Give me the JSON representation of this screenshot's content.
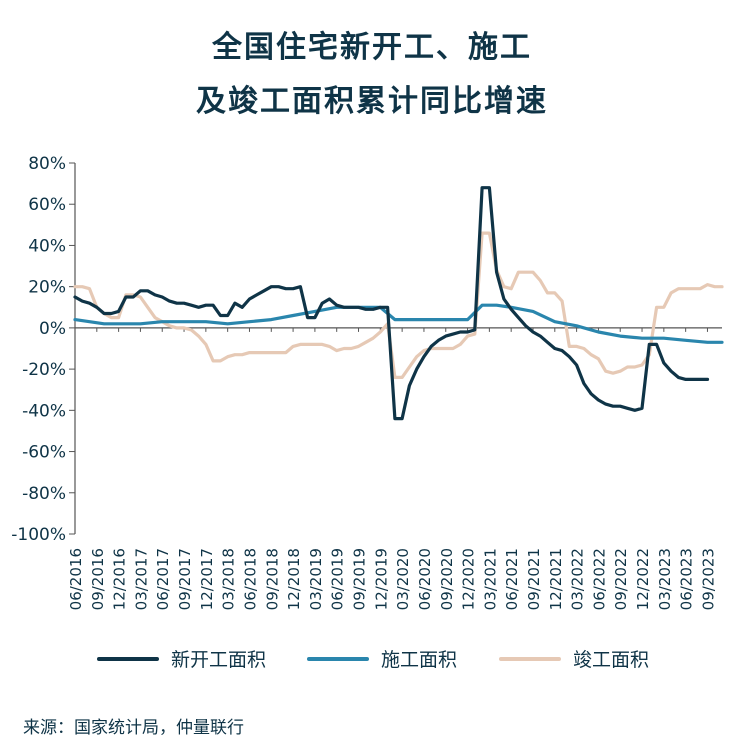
{
  "title_line1": "全国住宅新开工、施工",
  "title_line2": "及竣工面积累计同比增速",
  "source": "来源：国家统计局，仲量联行",
  "colors": {
    "s1": "#0f3447",
    "s2": "#2a86ad",
    "s3": "#e6c9b5",
    "axis": "#555555",
    "text": "#0f3447"
  },
  "chart_data": {
    "type": "line",
    "title": "全国住宅新开工、施工及竣工面积累计同比增速",
    "ylim": [
      -100,
      80
    ],
    "yticks": [
      -100,
      -80,
      -60,
      -40,
      -20,
      0,
      20,
      40,
      60,
      80
    ],
    "ytick_labels": [
      "-100%",
      "-80%",
      "-60%",
      "-40%",
      "-20%",
      "0%",
      "20%",
      "40%",
      "60%",
      "80%"
    ],
    "xtick_labels": [
      "06/2016",
      "09/2016",
      "12/2016",
      "03/2017",
      "06/2017",
      "09/2017",
      "12/2017",
      "03/2018",
      "06/2018",
      "09/2018",
      "12/2018",
      "03/2019",
      "06/2019",
      "09/2019",
      "12/2019",
      "03/2020",
      "06/2020",
      "09/2020",
      "12/2020",
      "03/2021",
      "06/2021",
      "09/2021",
      "12/2021",
      "03/2022",
      "06/2022",
      "09/2022",
      "12/2022",
      "03/2023",
      "06/2023",
      "09/2023"
    ],
    "x_start": "2016-06",
    "x_end": "2023-11",
    "grid": false,
    "legend_position": "bottom",
    "series": [
      {
        "name": "新开工面积",
        "points": [
          [
            "2016-06",
            15
          ],
          [
            "2016-07",
            13
          ],
          [
            "2016-08",
            12
          ],
          [
            "2016-09",
            10
          ],
          [
            "2016-10",
            7
          ],
          [
            "2016-11",
            7
          ],
          [
            "2016-12",
            8
          ],
          [
            "2017-01",
            15
          ],
          [
            "2017-02",
            15
          ],
          [
            "2017-03",
            18
          ],
          [
            "2017-04",
            18
          ],
          [
            "2017-05",
            16
          ],
          [
            "2017-06",
            15
          ],
          [
            "2017-07",
            13
          ],
          [
            "2017-08",
            12
          ],
          [
            "2017-09",
            12
          ],
          [
            "2017-10",
            11
          ],
          [
            "2017-11",
            10
          ],
          [
            "2017-12",
            11
          ],
          [
            "2018-01",
            11
          ],
          [
            "2018-02",
            6
          ],
          [
            "2018-03",
            6
          ],
          [
            "2018-04",
            12
          ],
          [
            "2018-05",
            10
          ],
          [
            "2018-06",
            14
          ],
          [
            "2018-07",
            16
          ],
          [
            "2018-08",
            18
          ],
          [
            "2018-09",
            20
          ],
          [
            "2018-10",
            20
          ],
          [
            "2018-11",
            19
          ],
          [
            "2018-12",
            19
          ],
          [
            "2019-01",
            20
          ],
          [
            "2019-02",
            5
          ],
          [
            "2019-03",
            5
          ],
          [
            "2019-04",
            12
          ],
          [
            "2019-05",
            14
          ],
          [
            "2019-06",
            11
          ],
          [
            "2019-07",
            10
          ],
          [
            "2019-08",
            10
          ],
          [
            "2019-09",
            10
          ],
          [
            "2019-10",
            9
          ],
          [
            "2019-11",
            9
          ],
          [
            "2019-12",
            10
          ],
          [
            "2020-01",
            10
          ],
          [
            "2020-02",
            -44
          ],
          [
            "2020-03",
            -44
          ],
          [
            "2020-04",
            -28
          ],
          [
            "2020-05",
            -20
          ],
          [
            "2020-06",
            -14
          ],
          [
            "2020-07",
            -9
          ],
          [
            "2020-08",
            -6
          ],
          [
            "2020-09",
            -4
          ],
          [
            "2020-10",
            -3
          ],
          [
            "2020-11",
            -2
          ],
          [
            "2020-12",
            -2
          ],
          [
            "2021-01",
            -1
          ],
          [
            "2021-02",
            68
          ],
          [
            "2021-03",
            68
          ],
          [
            "2021-04",
            27
          ],
          [
            "2021-05",
            14
          ],
          [
            "2021-06",
            9
          ],
          [
            "2021-07",
            5
          ],
          [
            "2021-08",
            1
          ],
          [
            "2021-09",
            -2
          ],
          [
            "2021-10",
            -4
          ],
          [
            "2021-11",
            -7
          ],
          [
            "2021-12",
            -10
          ],
          [
            "2022-01",
            -11
          ],
          [
            "2022-02",
            -14
          ],
          [
            "2022-03",
            -18
          ],
          [
            "2022-04",
            -27
          ],
          [
            "2022-05",
            -32
          ],
          [
            "2022-06",
            -35
          ],
          [
            "2022-07",
            -37
          ],
          [
            "2022-08",
            -38
          ],
          [
            "2022-09",
            -38
          ],
          [
            "2022-10",
            -39
          ],
          [
            "2022-11",
            -40
          ],
          [
            "2022-12",
            -39
          ],
          [
            "2023-01",
            -8
          ],
          [
            "2023-02",
            -8
          ],
          [
            "2023-03",
            -17
          ],
          [
            "2023-04",
            -21
          ],
          [
            "2023-05",
            -24
          ],
          [
            "2023-06",
            -25
          ],
          [
            "2023-07",
            -25
          ],
          [
            "2023-08",
            -25
          ],
          [
            "2023-09",
            -25
          ]
        ]
      },
      {
        "name": "施工面积",
        "points": [
          [
            "2016-06",
            4
          ],
          [
            "2016-08",
            3
          ],
          [
            "2016-10",
            2
          ],
          [
            "2016-12",
            2
          ],
          [
            "2017-03",
            2
          ],
          [
            "2017-06",
            3
          ],
          [
            "2017-09",
            3
          ],
          [
            "2017-12",
            3
          ],
          [
            "2018-03",
            2
          ],
          [
            "2018-06",
            3
          ],
          [
            "2018-09",
            4
          ],
          [
            "2018-12",
            6
          ],
          [
            "2019-03",
            8
          ],
          [
            "2019-06",
            10
          ],
          [
            "2019-09",
            10
          ],
          [
            "2019-12",
            10
          ],
          [
            "2020-02",
            4
          ],
          [
            "2020-06",
            4
          ],
          [
            "2020-09",
            4
          ],
          [
            "2020-12",
            4
          ],
          [
            "2021-02",
            11
          ],
          [
            "2021-04",
            11
          ],
          [
            "2021-06",
            10
          ],
          [
            "2021-09",
            8
          ],
          [
            "2021-12",
            3
          ],
          [
            "2022-03",
            1
          ],
          [
            "2022-06",
            -2
          ],
          [
            "2022-09",
            -4
          ],
          [
            "2022-12",
            -5
          ],
          [
            "2023-03",
            -5
          ],
          [
            "2023-06",
            -6
          ],
          [
            "2023-09",
            -7
          ],
          [
            "2023-11",
            -7
          ]
        ]
      },
      {
        "name": "竣工面积",
        "points": [
          [
            "2016-06",
            20
          ],
          [
            "2016-07",
            20
          ],
          [
            "2016-08",
            19
          ],
          [
            "2016-09",
            10
          ],
          [
            "2016-10",
            7
          ],
          [
            "2016-11",
            5
          ],
          [
            "2016-12",
            5
          ],
          [
            "2017-01",
            16
          ],
          [
            "2017-02",
            16
          ],
          [
            "2017-03",
            15
          ],
          [
            "2017-04",
            10
          ],
          [
            "2017-05",
            5
          ],
          [
            "2017-06",
            3
          ],
          [
            "2017-07",
            1
          ],
          [
            "2017-08",
            0
          ],
          [
            "2017-09",
            0
          ],
          [
            "2017-10",
            -1
          ],
          [
            "2017-11",
            -4
          ],
          [
            "2017-12",
            -8
          ],
          [
            "2018-01",
            -16
          ],
          [
            "2018-02",
            -16
          ],
          [
            "2018-03",
            -14
          ],
          [
            "2018-04",
            -13
          ],
          [
            "2018-05",
            -13
          ],
          [
            "2018-06",
            -12
          ],
          [
            "2018-07",
            -12
          ],
          [
            "2018-08",
            -12
          ],
          [
            "2018-09",
            -12
          ],
          [
            "2018-10",
            -12
          ],
          [
            "2018-11",
            -12
          ],
          [
            "2018-12",
            -9
          ],
          [
            "2019-01",
            -8
          ],
          [
            "2019-02",
            -8
          ],
          [
            "2019-03",
            -8
          ],
          [
            "2019-04",
            -8
          ],
          [
            "2019-05",
            -9
          ],
          [
            "2019-06",
            -11
          ],
          [
            "2019-07",
            -10
          ],
          [
            "2019-08",
            -10
          ],
          [
            "2019-09",
            -9
          ],
          [
            "2019-10",
            -7
          ],
          [
            "2019-11",
            -5
          ],
          [
            "2019-12",
            -2
          ],
          [
            "2020-01",
            2
          ],
          [
            "2020-02",
            -24
          ],
          [
            "2020-03",
            -24
          ],
          [
            "2020-04",
            -19
          ],
          [
            "2020-05",
            -14
          ],
          [
            "2020-06",
            -11
          ],
          [
            "2020-07",
            -10
          ],
          [
            "2020-08",
            -10
          ],
          [
            "2020-09",
            -10
          ],
          [
            "2020-10",
            -10
          ],
          [
            "2020-11",
            -8
          ],
          [
            "2020-12",
            -4
          ],
          [
            "2021-01",
            -3
          ],
          [
            "2021-02",
            46
          ],
          [
            "2021-03",
            46
          ],
          [
            "2021-04",
            28
          ],
          [
            "2021-05",
            20
          ],
          [
            "2021-06",
            19
          ],
          [
            "2021-07",
            27
          ],
          [
            "2021-08",
            27
          ],
          [
            "2021-09",
            27
          ],
          [
            "2021-10",
            23
          ],
          [
            "2021-11",
            17
          ],
          [
            "2021-12",
            17
          ],
          [
            "2022-01",
            13
          ],
          [
            "2022-02",
            -9
          ],
          [
            "2022-03",
            -9
          ],
          [
            "2022-04",
            -10
          ],
          [
            "2022-05",
            -13
          ],
          [
            "2022-06",
            -15
          ],
          [
            "2022-07",
            -21
          ],
          [
            "2022-08",
            -22
          ],
          [
            "2022-09",
            -21
          ],
          [
            "2022-10",
            -19
          ],
          [
            "2022-11",
            -19
          ],
          [
            "2022-12",
            -18
          ],
          [
            "2023-01",
            -13
          ],
          [
            "2023-02",
            10
          ],
          [
            "2023-03",
            10
          ],
          [
            "2023-04",
            17
          ],
          [
            "2023-05",
            19
          ],
          [
            "2023-06",
            19
          ],
          [
            "2023-07",
            19
          ],
          [
            "2023-08",
            19
          ],
          [
            "2023-09",
            21
          ],
          [
            "2023-10",
            20
          ],
          [
            "2023-11",
            20
          ]
        ]
      }
    ]
  }
}
